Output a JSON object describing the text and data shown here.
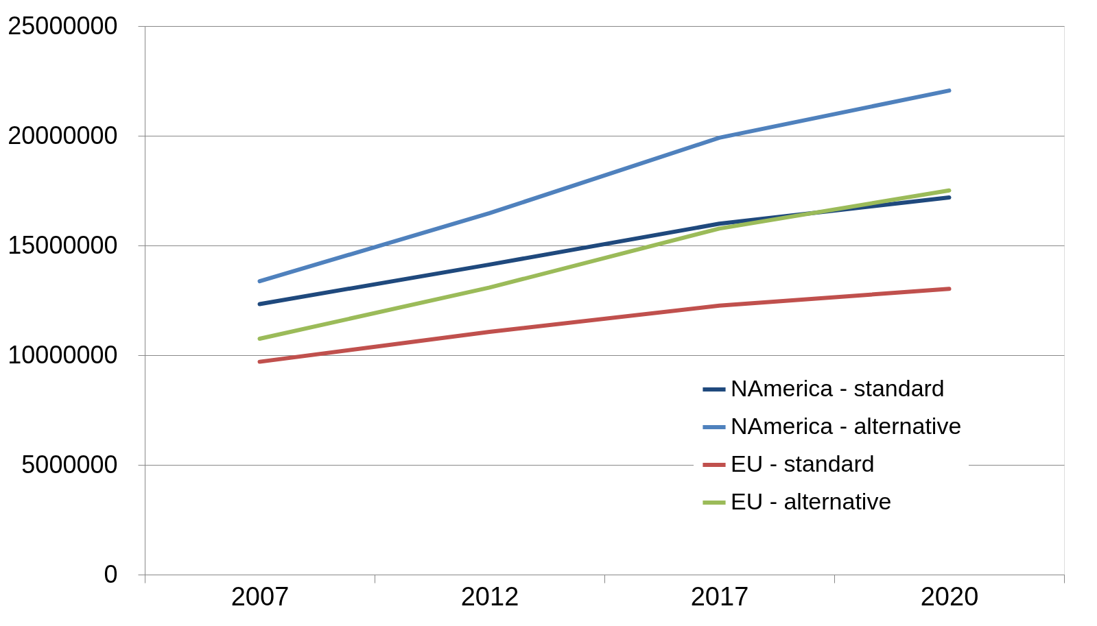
{
  "chart_data": {
    "type": "line",
    "categories": [
      "2007",
      "2012",
      "2017",
      "2020"
    ],
    "series": [
      {
        "name": "NAmerica - standard",
        "color": "#1f497d",
        "values": [
          12330000,
          14130000,
          15990000,
          17190000
        ]
      },
      {
        "name": "NAmerica - alternative",
        "color": "#4f81bd",
        "values": [
          13370000,
          16470000,
          19910000,
          22060000
        ]
      },
      {
        "name": "EU - standard",
        "color": "#c0504d",
        "values": [
          9700000,
          11060000,
          12260000,
          13020000
        ]
      },
      {
        "name": "EU - alternative",
        "color": "#9bbb59",
        "values": [
          10750000,
          13080000,
          15770000,
          17510000
        ]
      }
    ],
    "ylim": [
      0,
      25000000
    ],
    "yticks": [
      0,
      5000000,
      10000000,
      15000000,
      20000000,
      25000000
    ],
    "grid": "y",
    "legend": "bottom right",
    "marker": "none",
    "line_style": "solid"
  }
}
